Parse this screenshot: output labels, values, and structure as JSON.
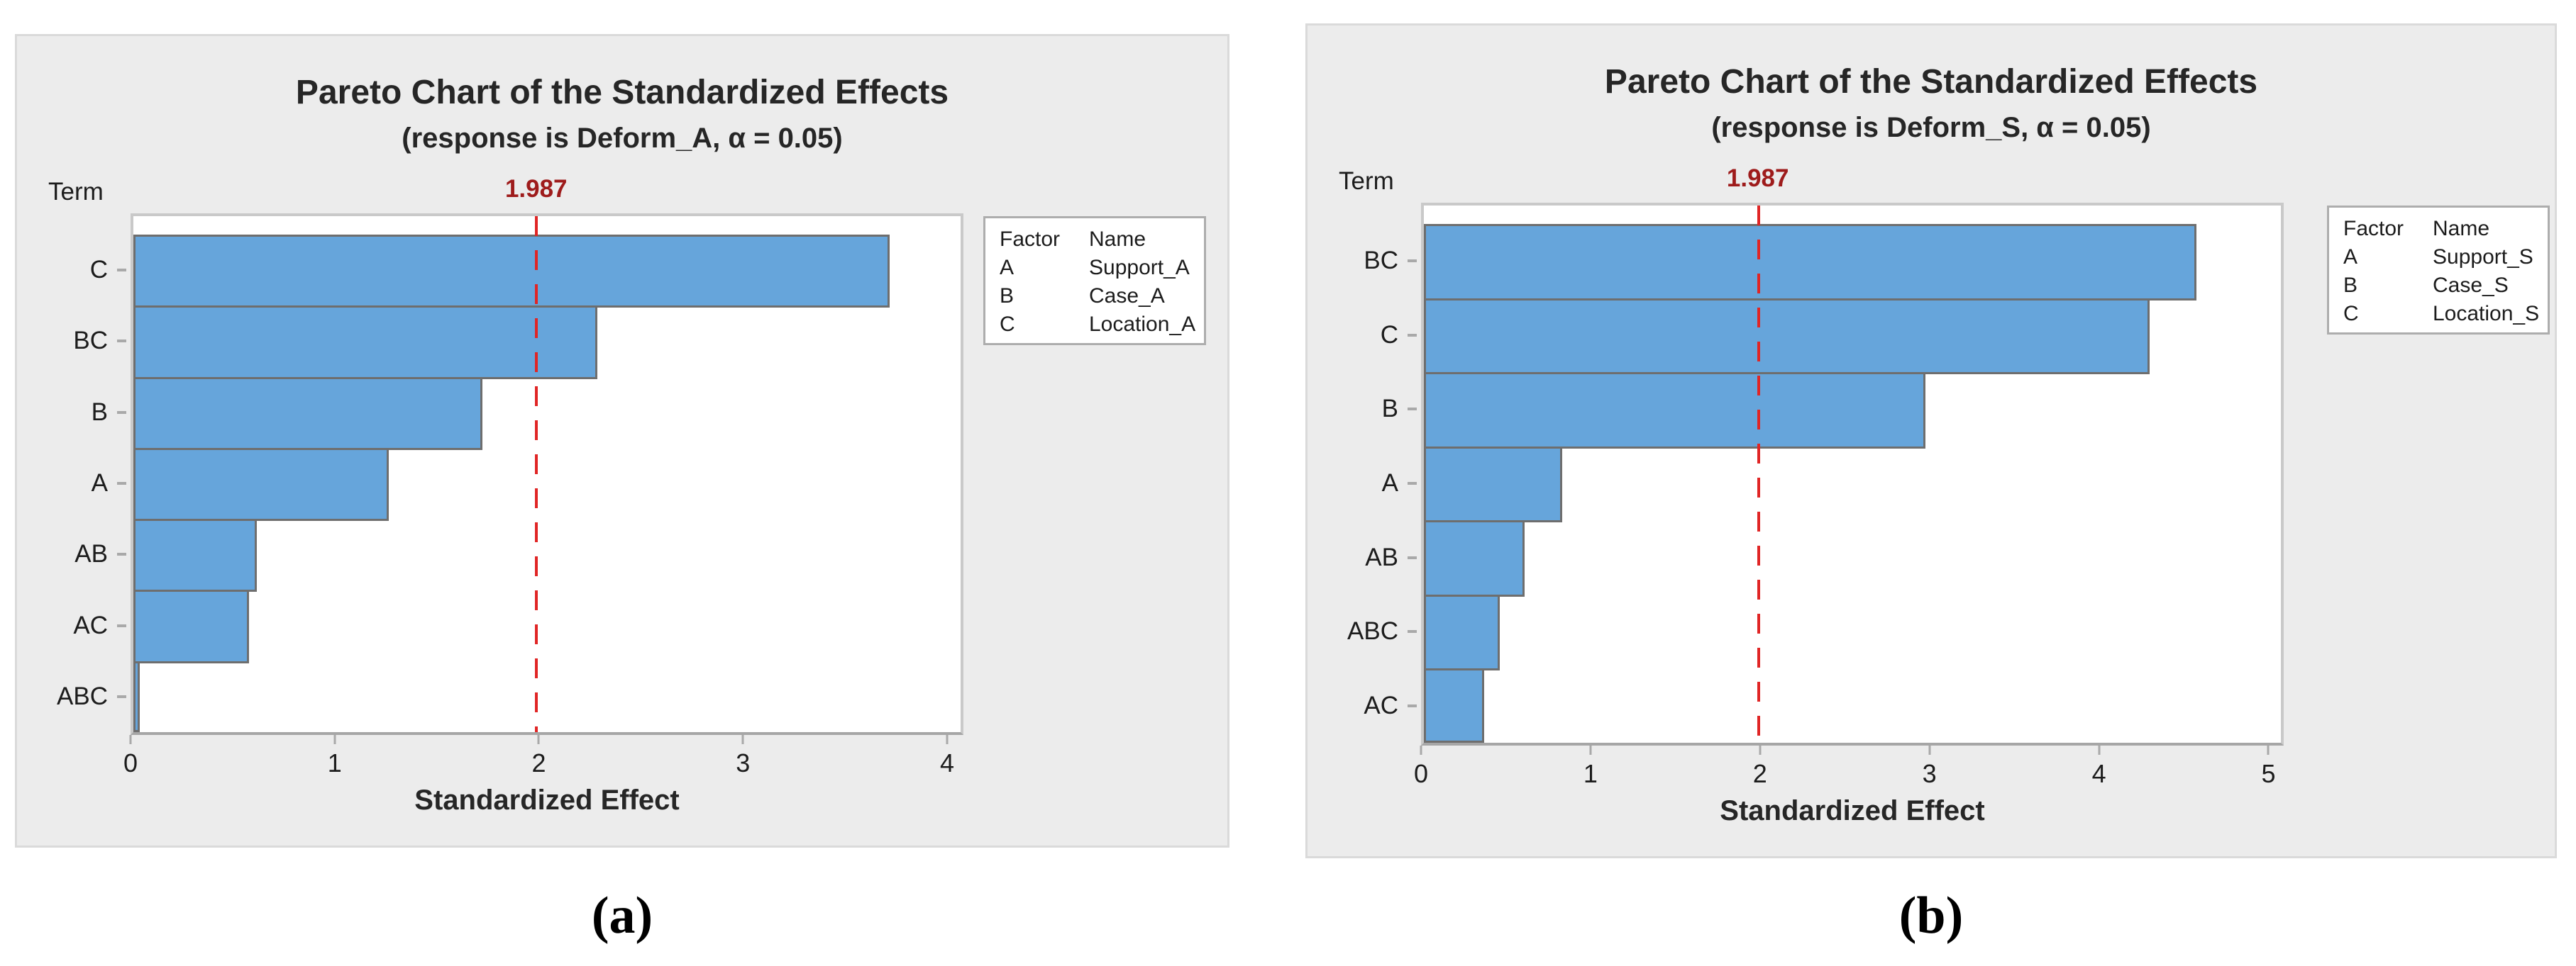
{
  "colors": {
    "bar_fill": "#66A5DB",
    "bar_border": "#6E6E6E",
    "panel_bg": "#ECECEC",
    "panel_border": "#DADADA",
    "plot_bg": "#FFFFFF",
    "plot_border": "#C9C9C9",
    "reference_line": "#E02525",
    "reference_label": "#9E1B1B",
    "legend_border": "#ADADAD",
    "tick": "#A9A9A9",
    "text": "#262626"
  },
  "chart_data": [
    {
      "type": "bar",
      "orientation": "horizontal",
      "title": "Pareto Chart of the Standardized Effects",
      "subtitle": "(response is Deform_A, α = 0.05)",
      "term_axis_label": "Term",
      "xlabel": "Standardized Effect",
      "categories": [
        "C",
        "BC",
        "B",
        "A",
        "AB",
        "AC",
        "ABC"
      ],
      "values": [
        3.73,
        2.29,
        1.72,
        1.26,
        0.61,
        0.57,
        0.03
      ],
      "x_ticks": [
        0,
        1,
        2,
        3,
        4
      ],
      "xlim": [
        0,
        4.08
      ],
      "reference_line": 1.987,
      "reference_label": "1.987",
      "grid": false,
      "legend_position": "right",
      "legend": {
        "headers": [
          "Factor",
          "Name"
        ],
        "rows": [
          [
            "A",
            "Support_A"
          ],
          [
            "B",
            "Case_A"
          ],
          [
            "C",
            "Location_A"
          ]
        ]
      },
      "caption": "(a)"
    },
    {
      "type": "bar",
      "orientation": "horizontal",
      "title": "Pareto Chart of the Standardized Effects",
      "subtitle": "(response is Deform_S, α = 0.05)",
      "term_axis_label": "Term",
      "xlabel": "Standardized Effect",
      "categories": [
        "BC",
        "C",
        "B",
        "A",
        "AB",
        "ABC",
        "AC"
      ],
      "values": [
        4.59,
        4.31,
        2.98,
        0.82,
        0.6,
        0.45,
        0.36
      ],
      "x_ticks": [
        0,
        1,
        2,
        3,
        4,
        5
      ],
      "xlim": [
        0,
        5.09
      ],
      "reference_line": 1.987,
      "reference_label": "1.987",
      "grid": false,
      "legend_position": "right",
      "legend": {
        "headers": [
          "Factor",
          "Name"
        ],
        "rows": [
          [
            "A",
            "Support_S"
          ],
          [
            "B",
            "Case_S"
          ],
          [
            "C",
            "Location_S"
          ]
        ]
      },
      "caption": "(b)"
    }
  ]
}
